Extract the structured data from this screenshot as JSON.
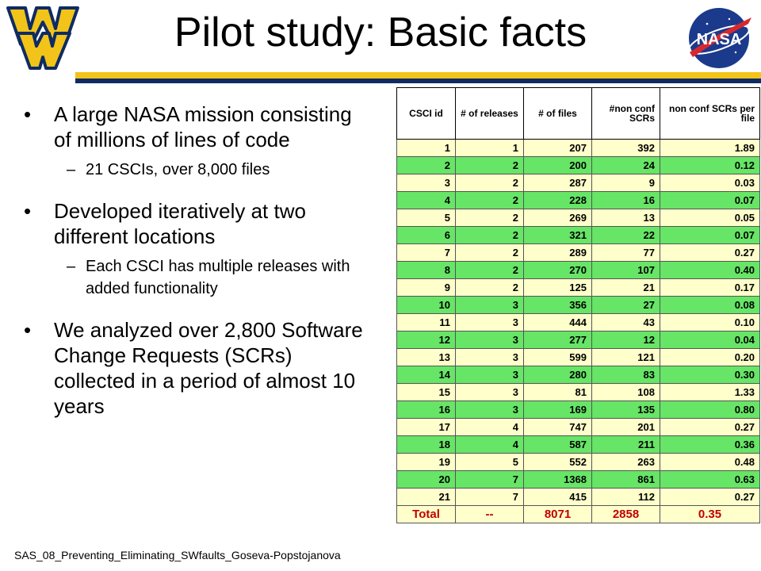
{
  "title": "Pilot study: Basic facts",
  "bullets": [
    {
      "text": "A large NASA mission consisting of millions of lines of code",
      "sub": [
        "21 CSCIs, over 8,000 files"
      ]
    },
    {
      "text": "Developed iteratively at two different locations",
      "sub": [
        "Each CSCI has multiple releases with added functionality"
      ]
    },
    {
      "text": "We analyzed over 2,800 Software Change Requests (SCRs) collected in a period of almost 10 years",
      "sub": []
    }
  ],
  "footer": "SAS_08_Preventing_Eliminating_SWfaults_Goseva-Popstojanova",
  "logos": {
    "left": "wv-logo",
    "right": "nasa-logo",
    "nasa_text": "NASA"
  },
  "table": {
    "headers": [
      "CSCI id",
      "# of releases",
      "# of files",
      "#non conf SCRs",
      "non conf SCRs per file"
    ],
    "rows": [
      [
        "1",
        "1",
        "207",
        "392",
        "1.89"
      ],
      [
        "2",
        "2",
        "200",
        "24",
        "0.12"
      ],
      [
        "3",
        "2",
        "287",
        "9",
        "0.03"
      ],
      [
        "4",
        "2",
        "228",
        "16",
        "0.07"
      ],
      [
        "5",
        "2",
        "269",
        "13",
        "0.05"
      ],
      [
        "6",
        "2",
        "321",
        "22",
        "0.07"
      ],
      [
        "7",
        "2",
        "289",
        "77",
        "0.27"
      ],
      [
        "8",
        "2",
        "270",
        "107",
        "0.40"
      ],
      [
        "9",
        "2",
        "125",
        "21",
        "0.17"
      ],
      [
        "10",
        "3",
        "356",
        "27",
        "0.08"
      ],
      [
        "11",
        "3",
        "444",
        "43",
        "0.10"
      ],
      [
        "12",
        "3",
        "277",
        "12",
        "0.04"
      ],
      [
        "13",
        "3",
        "599",
        "121",
        "0.20"
      ],
      [
        "14",
        "3",
        "280",
        "83",
        "0.30"
      ],
      [
        "15",
        "3",
        "81",
        "108",
        "1.33"
      ],
      [
        "16",
        "3",
        "169",
        "135",
        "0.80"
      ],
      [
        "17",
        "4",
        "747",
        "201",
        "0.27"
      ],
      [
        "18",
        "4",
        "587",
        "211",
        "0.36"
      ],
      [
        "19",
        "5",
        "552",
        "263",
        "0.48"
      ],
      [
        "20",
        "7",
        "1368",
        "861",
        "0.63"
      ],
      [
        "21",
        "7",
        "415",
        "112",
        "0.27"
      ]
    ],
    "total": [
      "Total",
      "--",
      "8071",
      "2858",
      "0.35"
    ]
  },
  "colors": {
    "gold": "#F2C318",
    "blue": "#0E2B63",
    "row_light": "#FFFFCC",
    "row_green": "#66E566",
    "total_text": "#C00000"
  }
}
